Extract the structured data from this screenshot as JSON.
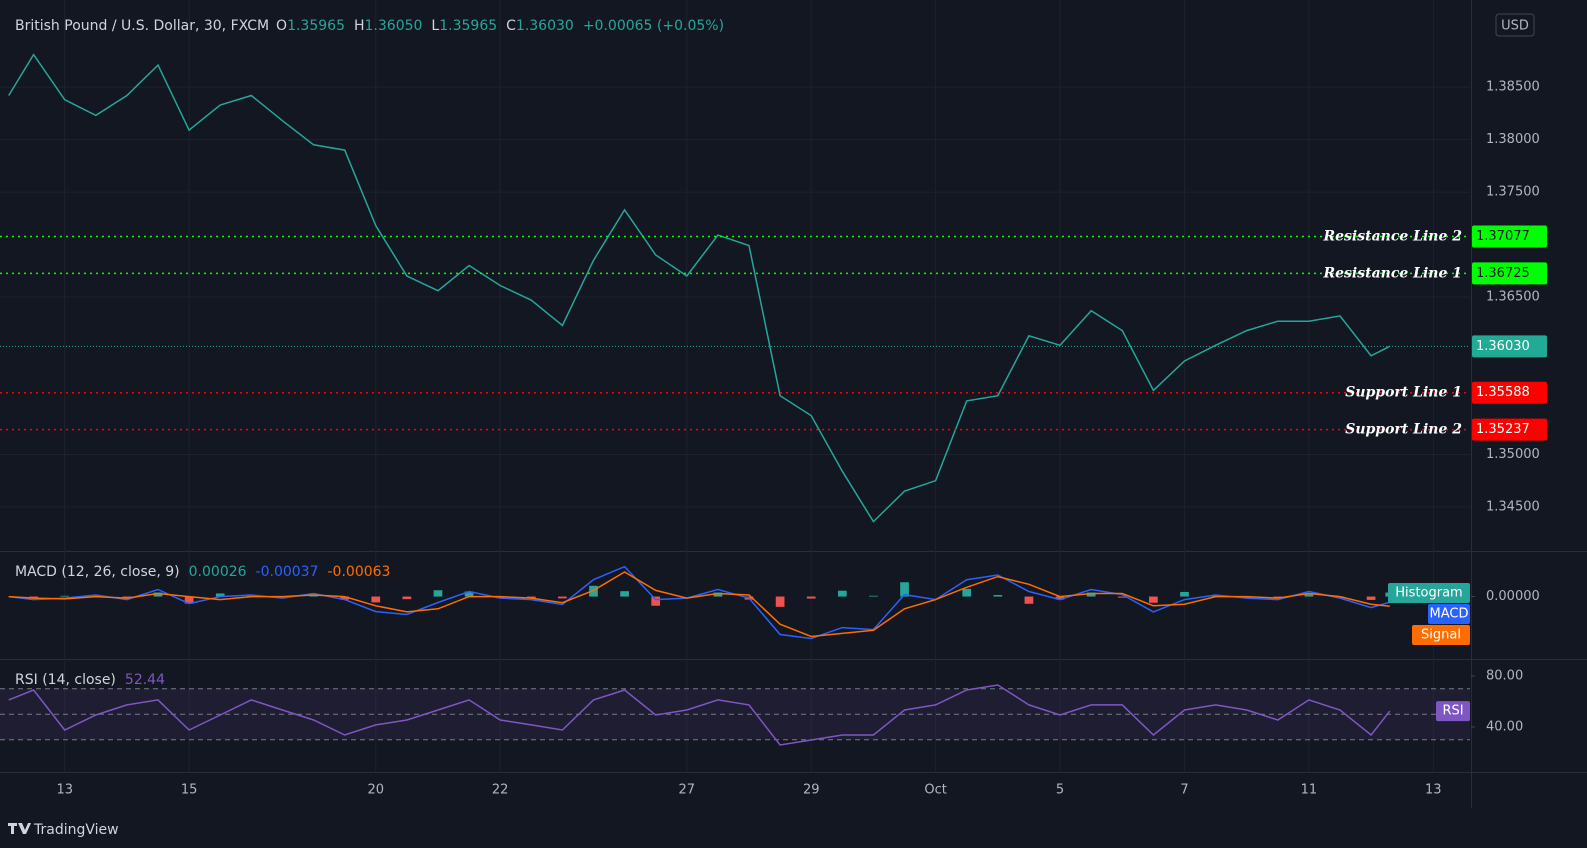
{
  "ui": {
    "currency": "USD",
    "brand": "TradingView"
  },
  "chart_data": [
    {
      "type": "line",
      "title": "British Pound / U.S. Dollar, 30, FXCM",
      "ohlc": [
        {
          "key": "O",
          "value": "1.35965"
        },
        {
          "key": "H",
          "value": "1.36050"
        },
        {
          "key": "L",
          "value": "1.35965"
        },
        {
          "key": "C",
          "value": "1.36030"
        }
      ],
      "change": "+0.00065 (+0.05%)",
      "x": [
        -0.9,
        -0.5,
        0,
        0.5,
        1,
        1.5,
        2,
        2.5,
        3,
        3.5,
        4,
        4.5,
        5,
        5.5,
        6,
        6.5,
        7,
        7.5,
        8,
        8.5,
        9,
        9.5,
        10,
        10.5,
        11,
        11.5,
        12,
        12.5,
        13,
        13.5,
        14,
        14.5,
        15,
        15.5,
        16,
        16.5,
        17,
        17.5,
        18,
        18.5,
        19,
        19.5,
        20,
        20.5,
        21,
        21.3
      ],
      "xlim": [
        -0.96,
        22.59
      ],
      "xticks": [
        {
          "value": 0,
          "label": "13"
        },
        {
          "value": 2,
          "label": "15"
        },
        {
          "value": 5,
          "label": "20"
        },
        {
          "value": 7,
          "label": "22"
        },
        {
          "value": 10,
          "label": "27"
        },
        {
          "value": 12,
          "label": "29"
        },
        {
          "value": 14,
          "label": "Oct"
        },
        {
          "value": 16,
          "label": "5"
        },
        {
          "value": 18,
          "label": "7"
        },
        {
          "value": 20,
          "label": "11"
        },
        {
          "value": 22,
          "label": "13"
        }
      ],
      "ylim": [
        1.3408,
        1.3933
      ],
      "yticks": [
        {
          "value": 1.385,
          "label": "1.38500"
        },
        {
          "value": 1.38,
          "label": "1.38000"
        },
        {
          "value": 1.375,
          "label": "1.37500"
        },
        {
          "value": 1.365,
          "label": "1.36500"
        },
        {
          "value": 1.35,
          "label": "1.35000"
        },
        {
          "value": 1.345,
          "label": "1.34500"
        }
      ],
      "grid": true,
      "series": [
        {
          "color": "#26a69a",
          "values": [
            1.3842,
            1.3881,
            1.3838,
            1.3823,
            1.3842,
            1.3871,
            1.3809,
            1.3833,
            1.3842,
            1.3818,
            1.3795,
            1.379,
            1.3718,
            1.367,
            1.3656,
            1.368,
            1.3661,
            1.3647,
            1.3623,
            1.3685,
            1.3733,
            1.369,
            1.367,
            1.3709,
            1.3699,
            1.3556,
            1.3537,
            1.3484,
            1.3436,
            1.3465,
            1.3475,
            1.3551,
            1.3556,
            1.3613,
            1.3604,
            1.3637,
            1.3618,
            1.3561,
            1.3589,
            1.3604,
            1.3618,
            1.3627,
            1.3627,
            1.3632,
            1.3594,
            1.3603
          ]
        }
      ],
      "levels": [
        {
          "name": "Resistance Line 2",
          "value": 1.37077,
          "color": "#00ff00",
          "text_color": "#131722"
        },
        {
          "name": "Resistance Line 1",
          "value": 1.36725,
          "color": "#00ff00",
          "text_color": "#131722"
        },
        {
          "value": 1.3603,
          "value_label": "1.36030",
          "color": "#22ab94",
          "text_color": "#ffffff"
        },
        {
          "name": "Support Line 1",
          "value": 1.35588,
          "color": "#ff0000",
          "text_color": "#ffffff"
        },
        {
          "name": "Support Line 2",
          "value": 1.35237,
          "color": "#ff0000",
          "text_color": "#ffffff"
        }
      ]
    },
    {
      "type": "macd",
      "title": "MACD (12, 26, close, 9)",
      "legend_values": [
        "0.00026",
        "-0.00037",
        "-0.00063"
      ],
      "ylim": [
        -0.004,
        0.0029
      ],
      "yticks": [
        {
          "value": 0,
          "label": "0.00000"
        }
      ],
      "series": [
        {
          "name": "Histogram",
          "color": "#26a69a",
          "negative_color": "#ef5350",
          "values": [
            0,
            -0.0001,
            5e-05,
            0.0001,
            -0.0001,
            0.00026,
            -0.00046,
            0.0002,
            0.0001,
            -0.0001,
            0.0001,
            -0.0002,
            -0.00038,
            -0.00017,
            0.00041,
            0.00033,
            -0.0001,
            -0.0001,
            -0.00012,
            0.0007,
            0.00035,
            -0.0006,
            0,
            0.00026,
            -0.0002,
            -0.00067,
            -0.00013,
            0.00038,
            5e-05,
            0.00093,
            0,
            0.0005,
            0.0001,
            -0.00047,
            -0.0002,
            0.00026,
            -7e-05,
            -0.0004,
            0.0003,
            0.0001,
            -0.0001,
            -0.0001,
            0.00013,
            -0.0001,
            -0.00022,
            0.00026
          ]
        },
        {
          "name": "MACD",
          "color": "#2962ff",
          "values": [
            0,
            -0.0002,
            -0.0001,
            0.0001,
            -0.0002,
            0.00046,
            -0.00046,
            0,
            0.0001,
            -0.0001,
            0.0002,
            -0.0002,
            -0.00098,
            -0.00117,
            -0.00039,
            0.00033,
            -0.0001,
            -0.0002,
            -0.00052,
            0.0011,
            0.00195,
            -0.0002,
            -0.0001,
            0.00046,
            -0.0001,
            -0.00247,
            -0.00273,
            -0.00202,
            -0.00215,
            0.00013,
            -0.0002,
            0.0011,
            0.0014,
            0.00033,
            -0.0002,
            0.00046,
            0.00013,
            -0.001,
            -0.0002,
            0.0001,
            -0.0001,
            -0.0002,
            0.00033,
            -0.0001,
            -0.00072,
            -0.00037
          ]
        },
        {
          "name": "Signal",
          "color": "#ff6d00",
          "values": [
            0,
            -0.0001,
            -0.00015,
            0,
            -0.0001,
            0.0002,
            0,
            -0.0002,
            0,
            0,
            0.0001,
            0,
            -0.0006,
            -0.001,
            -0.0008,
            0,
            0,
            -0.0001,
            -0.0004,
            0.0004,
            0.0016,
            0.0004,
            -0.0001,
            0.0002,
            0.0001,
            -0.0018,
            -0.0026,
            -0.0024,
            -0.0022,
            -0.0008,
            -0.0002,
            0.0006,
            0.0013,
            0.0008,
            0,
            0.0002,
            0.0002,
            -0.0006,
            -0.0005,
            0,
            0,
            -0.0001,
            0.0002,
            0,
            -0.0005,
            -0.00063
          ]
        }
      ]
    },
    {
      "type": "line",
      "title": "RSI (14, close)",
      "legend_values": [
        "52.44"
      ],
      "ylim": [
        4.7,
        92.5
      ],
      "yticks": [
        {
          "value": 80,
          "label": "80.00"
        },
        {
          "value": 40,
          "label": "40.00"
        }
      ],
      "bands": [
        30,
        50,
        70
      ],
      "series": [
        {
          "name": "RSI",
          "color": "#7e57c2",
          "values": [
            61.2,
            69,
            37.6,
            49.4,
            57.3,
            61.2,
            37.6,
            49.4,
            61.2,
            53.3,
            45.5,
            33.7,
            41.6,
            45.5,
            53.3,
            61.2,
            45.5,
            41.6,
            37.6,
            61.2,
            69,
            49.4,
            53.3,
            61.2,
            57.3,
            25.9,
            29.8,
            33.7,
            33.7,
            53.3,
            57.3,
            69,
            72.9,
            57.3,
            49.4,
            57.3,
            57.3,
            33.7,
            53.3,
            57.3,
            53.3,
            45.5,
            61.2,
            53.3,
            33.7,
            52.44
          ]
        }
      ]
    }
  ]
}
